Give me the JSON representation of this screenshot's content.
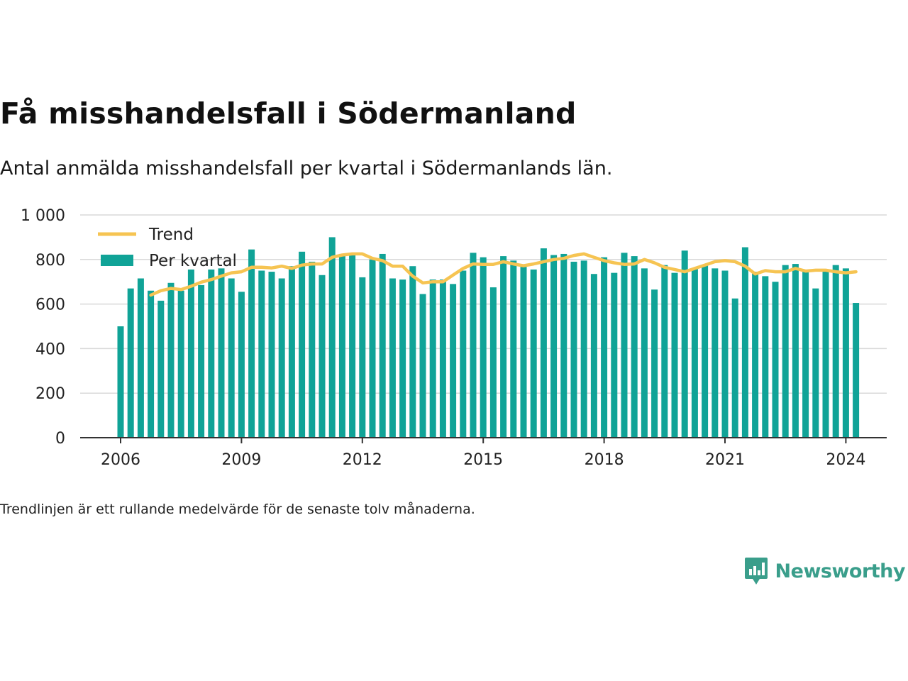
{
  "chart_data": {
    "type": "bar",
    "title": "Få misshandelsfall i Södermanland",
    "subtitle": "Antal anmälda misshandelsfall per kvartal i Södermanlands län.",
    "footnote": "Trendlinjen är ett rullande medelvärde för de senaste tolv månaderna.",
    "ylim": [
      0,
      1000
    ],
    "yticks": [
      0,
      200,
      400,
      600,
      800,
      1000
    ],
    "ytick_labels": [
      "0",
      "200",
      "400",
      "600",
      "800",
      "1 000"
    ],
    "xticks": [
      2006,
      2009,
      2012,
      2015,
      2018,
      2021,
      2024
    ],
    "xtick_labels": [
      "2006",
      "2009",
      "2012",
      "2015",
      "2018",
      "2021",
      "2024"
    ],
    "x_start": 2006,
    "grid": true,
    "legend_position": "top-left",
    "colors": {
      "bars": "#10a397",
      "trend": "#f6c452",
      "grid": "#d9d9d9",
      "axis": "#333333"
    },
    "series": [
      {
        "name": "Per kvartal",
        "type": "bar",
        "values": [
          500,
          670,
          715,
          660,
          615,
          695,
          660,
          755,
          685,
          755,
          760,
          715,
          655,
          845,
          750,
          745,
          715,
          770,
          835,
          790,
          730,
          900,
          825,
          830,
          720,
          800,
          825,
          715,
          710,
          770,
          645,
          710,
          710,
          690,
          750,
          830,
          810,
          675,
          815,
          795,
          770,
          755,
          850,
          820,
          825,
          790,
          795,
          735,
          810,
          740,
          830,
          815,
          760,
          665,
          775,
          740,
          840,
          760,
          775,
          760,
          750,
          625,
          855,
          745,
          725,
          700,
          775,
          780,
          745,
          670,
          755,
          775,
          760,
          605
        ]
      },
      {
        "name": "Trend",
        "type": "line",
        "values": [
          null,
          null,
          null,
          640,
          660,
          670,
          665,
          680,
          698,
          710,
          725,
          740,
          745,
          765,
          765,
          762,
          770,
          760,
          775,
          780,
          780,
          810,
          820,
          825,
          825,
          805,
          795,
          770,
          770,
          725,
          695,
          700,
          700,
          730,
          760,
          780,
          778,
          778,
          790,
          780,
          772,
          780,
          790,
          800,
          805,
          818,
          825,
          810,
          795,
          785,
          778,
          780,
          800,
          785,
          765,
          755,
          745,
          760,
          775,
          790,
          795,
          790,
          770,
          735,
          750,
          745,
          745,
          760,
          748,
          752,
          752,
          745,
          740,
          745
        ]
      }
    ]
  },
  "brand": {
    "name": "Newsworthy",
    "icon": "bar-chart-speech-bubble-icon"
  }
}
